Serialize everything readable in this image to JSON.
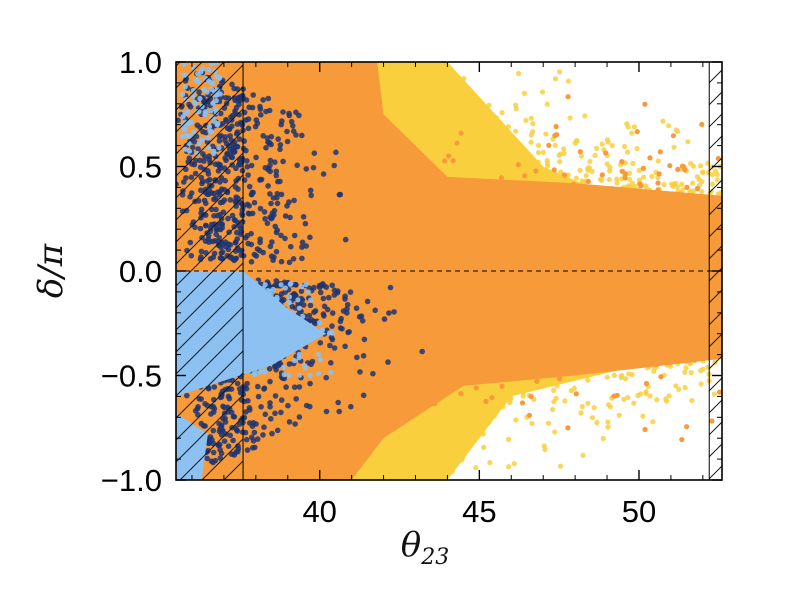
{
  "chart_data": {
    "type": "scatter",
    "title": "",
    "xlabel": "θ",
    "xlabel_subscript": "23",
    "ylabel": "δ/π",
    "xlim": [
      35.5,
      52.6
    ],
    "ylim": [
      -1.0,
      1.0
    ],
    "xticks": [
      40,
      45,
      50
    ],
    "xtick_labels": [
      "40",
      "45",
      "50"
    ],
    "yticks": [
      1.0,
      0.5,
      0.0,
      -0.5,
      -1.0
    ],
    "ytick_labels": [
      "1.0",
      "0.5",
      "0.0",
      "−0.5",
      "−1.0"
    ],
    "grid": false,
    "legend": "none",
    "reference_lines": [
      {
        "orientation": "horizontal",
        "y": 0.0,
        "style": "dashed"
      },
      {
        "orientation": "vertical",
        "x": 37.6,
        "style": "solid"
      },
      {
        "orientation": "vertical",
        "x": 52.2,
        "style": "solid"
      }
    ],
    "excluded_regions": [
      {
        "x_from": 35.5,
        "x_to": 37.6,
        "fill": "hatched"
      },
      {
        "x_from": 52.2,
        "x_to": 52.6,
        "fill": "hatched"
      }
    ],
    "series": [
      {
        "color": "#F9CF3E",
        "region": {
          "x": [
            35.5,
            52.6
          ],
          "y": [
            -1.0,
            1.0
          ]
        }
      },
      {
        "color": "#F79A3A",
        "region": {
          "x": [
            35.5,
            52.6
          ],
          "y": [
            -1.0,
            1.0
          ]
        }
      },
      {
        "color": "#1D3573",
        "region": {
          "x": [
            35.5,
            43.5
          ],
          "y": [
            -1.0,
            1.0
          ]
        }
      },
      {
        "color": "#8CC1F2",
        "region": {
          "x": [
            35.5,
            41.0
          ],
          "y": [
            -0.55,
            0.0
          ]
        }
      }
    ]
  }
}
